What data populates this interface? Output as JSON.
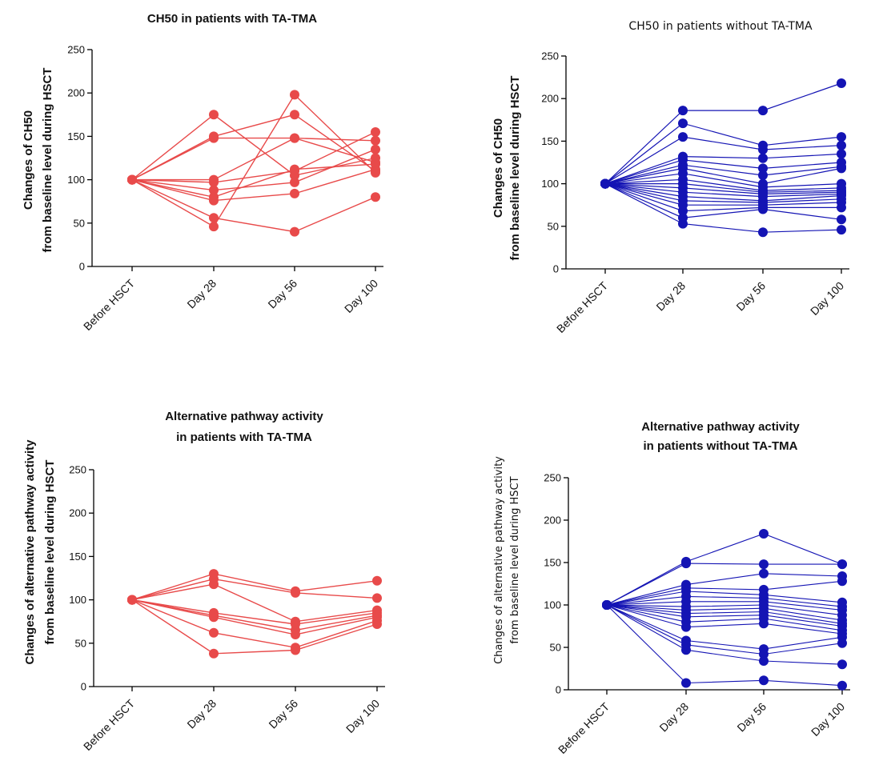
{
  "colors": {
    "red": "#e84a4a",
    "blue": "#1414b4"
  },
  "chart_data": [
    {
      "type": "line",
      "title": [
        "CH50 in patients with TA-TMA"
      ],
      "ylabel": [
        "Changes of CH50",
        "from baseline level during HSCT"
      ],
      "categories": [
        "Before HSCT",
        "Day 28",
        "Day 56",
        "Day 100"
      ],
      "ylim": [
        0,
        250
      ],
      "yticks": [
        "0",
        "50",
        "100",
        "150",
        "200",
        "250"
      ],
      "color": "red",
      "series": [
        {
          "values": [
            100,
            175,
            105,
            125
          ]
        },
        {
          "values": [
            100,
            150,
            175,
            110
          ]
        },
        {
          "values": [
            100,
            148,
            148,
            120
          ]
        },
        {
          "values": [
            100,
            100,
            148,
            145
          ]
        },
        {
          "values": [
            100,
            97,
            110,
            155
          ]
        },
        {
          "values": [
            100,
            88,
            97,
            135
          ]
        },
        {
          "values": [
            100,
            80,
            112,
            118
          ]
        },
        {
          "values": [
            100,
            76,
            84,
            112
          ]
        },
        {
          "values": [
            100,
            56,
            40,
            80
          ]
        },
        {
          "values": [
            100,
            46,
            198,
            108
          ]
        }
      ]
    },
    {
      "type": "line",
      "title": [
        "CH50 in patients without TA-TMA"
      ],
      "ylabel": [
        "Changes of CH50",
        "from baseline level during HSCT"
      ],
      "categories": [
        "Before HSCT",
        "Day 28",
        "Day 56",
        "Day 100"
      ],
      "ylim": [
        0,
        250
      ],
      "yticks": [
        "0",
        "50",
        "100",
        "150",
        "200",
        "250"
      ],
      "color": "blue",
      "series": [
        {
          "values": [
            100,
            186,
            186,
            218
          ]
        },
        {
          "values": [
            100,
            171,
            145,
            155
          ]
        },
        {
          "values": [
            100,
            155,
            140,
            145
          ]
        },
        {
          "values": [
            100,
            132,
            130,
            135
          ]
        },
        {
          "values": [
            100,
            128,
            118,
            125
          ]
        },
        {
          "values": [
            100,
            122,
            110,
            120
          ]
        },
        {
          "values": [
            100,
            118,
            100,
            118
          ]
        },
        {
          "values": [
            100,
            112,
            96,
            100
          ]
        },
        {
          "values": [
            100,
            105,
            92,
            95
          ]
        },
        {
          "values": [
            100,
            100,
            90,
            92
          ]
        },
        {
          "values": [
            100,
            95,
            88,
            90
          ]
        },
        {
          "values": [
            100,
            90,
            85,
            88
          ]
        },
        {
          "values": [
            100,
            85,
            80,
            86
          ]
        },
        {
          "values": [
            100,
            80,
            78,
            82
          ]
        },
        {
          "values": [
            100,
            75,
            75,
            78
          ]
        },
        {
          "values": [
            100,
            68,
            72,
            72
          ]
        },
        {
          "values": [
            100,
            60,
            70,
            58
          ]
        },
        {
          "values": [
            100,
            53,
            43,
            46
          ]
        }
      ]
    },
    {
      "type": "line",
      "title": [
        "Alternative pathway activity",
        "in patients with TA-TMA"
      ],
      "ylabel": [
        "Changes of alternative pathway activity",
        "from baseline level during HSCT"
      ],
      "categories": [
        "Before HSCT",
        "Day 28",
        "Day 56",
        "Day 100"
      ],
      "ylim": [
        0,
        250
      ],
      "yticks": [
        "0",
        "50",
        "100",
        "150",
        "200",
        "250"
      ],
      "color": "red",
      "series": [
        {
          "values": [
            100,
            130,
            110,
            122
          ]
        },
        {
          "values": [
            100,
            124,
            108,
            102
          ]
        },
        {
          "values": [
            100,
            118,
            75,
            88
          ]
        },
        {
          "values": [
            100,
            85,
            72,
            85
          ]
        },
        {
          "values": [
            100,
            82,
            65,
            82
          ]
        },
        {
          "values": [
            100,
            80,
            60,
            80
          ]
        },
        {
          "values": [
            100,
            62,
            45,
            76
          ]
        },
        {
          "values": [
            100,
            38,
            42,
            72
          ]
        }
      ]
    },
    {
      "type": "line",
      "title": [
        "Alternative pathway activity",
        "in patients without TA-TMA"
      ],
      "ylabel": [
        "Changes of alternative pathway activity",
        "from baseline level during HSCT"
      ],
      "categories": [
        "Before HSCT",
        "Day 28",
        "Day 56",
        "Day 100"
      ],
      "ylim": [
        0,
        250
      ],
      "yticks": [
        "0",
        "50",
        "100",
        "150",
        "200",
        "250"
      ],
      "color": "blue",
      "series": [
        {
          "values": [
            100,
            151,
            184,
            148
          ]
        },
        {
          "values": [
            100,
            149,
            148,
            148
          ]
        },
        {
          "values": [
            100,
            124,
            137,
            134
          ]
        },
        {
          "values": [
            100,
            120,
            118,
            128
          ]
        },
        {
          "values": [
            100,
            116,
            112,
            103
          ]
        },
        {
          "values": [
            100,
            110,
            108,
            98
          ]
        },
        {
          "values": [
            100,
            104,
            104,
            94
          ]
        },
        {
          "values": [
            100,
            98,
            100,
            88
          ]
        },
        {
          "values": [
            100,
            94,
            96,
            82
          ]
        },
        {
          "values": [
            100,
            90,
            92,
            78
          ]
        },
        {
          "values": [
            100,
            86,
            88,
            75
          ]
        },
        {
          "values": [
            100,
            80,
            84,
            70
          ]
        },
        {
          "values": [
            100,
            74,
            78,
            66
          ]
        },
        {
          "values": [
            100,
            58,
            48,
            62
          ]
        },
        {
          "values": [
            100,
            53,
            42,
            55
          ]
        },
        {
          "values": [
            100,
            47,
            34,
            30
          ]
        },
        {
          "values": [
            100,
            8,
            11,
            5
          ]
        }
      ]
    }
  ]
}
